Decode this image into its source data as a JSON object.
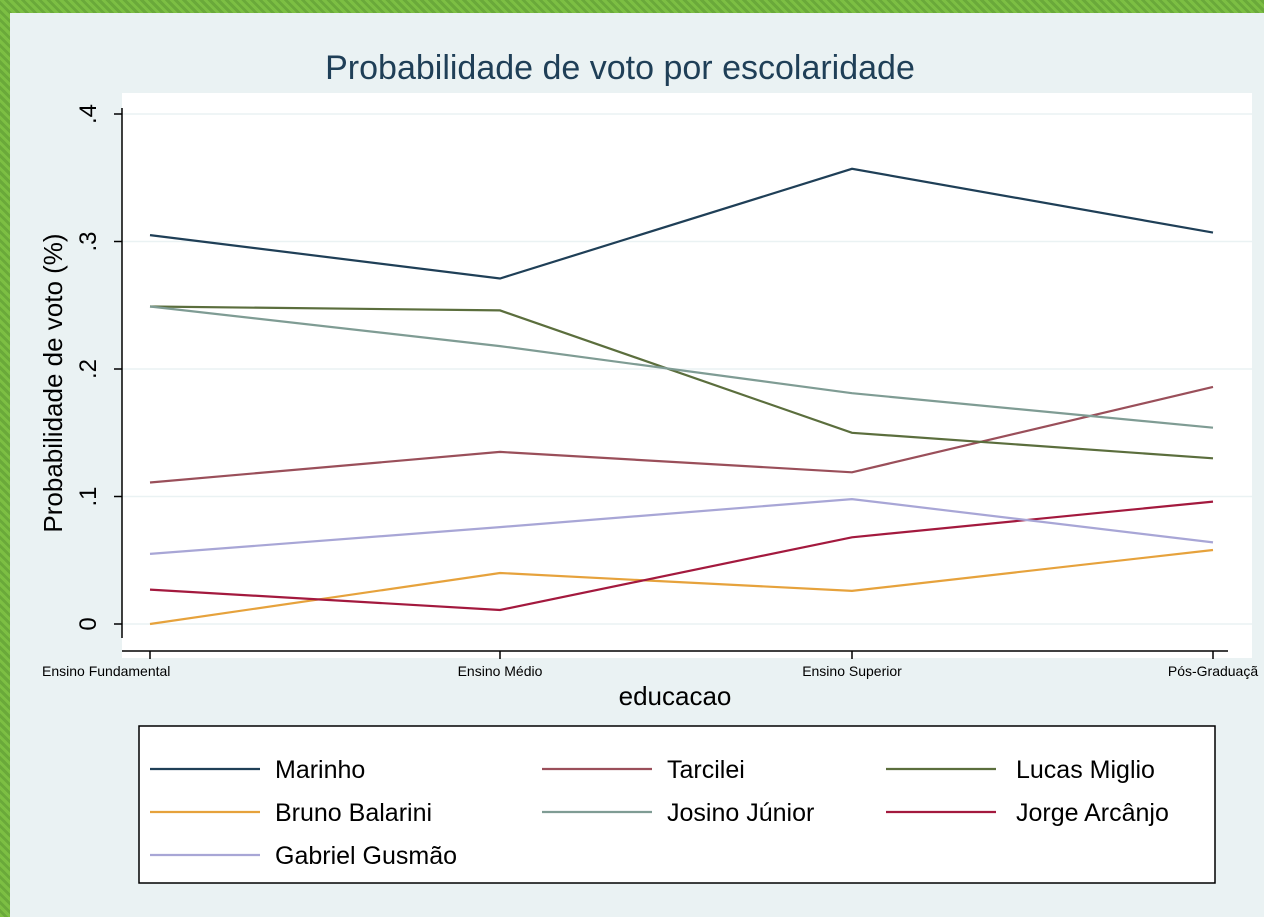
{
  "chart_data": {
    "type": "line",
    "title": "Probabilidade de voto por escolaridade",
    "xlabel": "educacao",
    "ylabel": "Probabilidade de voto (%)",
    "categories": [
      "Ensino Fundamental",
      "Ensino Médio",
      "Ensino Superior",
      "Pós-Graduação"
    ],
    "x_tick_labels": [
      "Ensino Fundamental",
      "Ensino Médio",
      "Ensino Superior",
      "Pós-Graduaçã"
    ],
    "ylim": [
      0,
      0.4
    ],
    "yticks": [
      0,
      0.1,
      0.2,
      0.3,
      0.4
    ],
    "ytick_labels": [
      "0",
      ".1",
      ".2",
      ".3",
      ".4"
    ],
    "grid": true,
    "legend_position": "bottom",
    "series": [
      {
        "name": "Marinho",
        "color": "#1f3f57",
        "values": [
          0.305,
          0.271,
          0.357,
          0.307
        ]
      },
      {
        "name": "Tarcilei",
        "color": "#9a4f5a",
        "values": [
          0.111,
          0.135,
          0.119,
          0.186
        ]
      },
      {
        "name": "Lucas Miglio",
        "color": "#5b6e3d",
        "values": [
          0.249,
          0.246,
          0.15,
          0.13
        ]
      },
      {
        "name": "Bruno Balarini",
        "color": "#e6a23c",
        "values": [
          0.0,
          0.04,
          0.026,
          0.058
        ]
      },
      {
        "name": "Josino Júnior",
        "color": "#7f9c94",
        "values": [
          0.249,
          0.218,
          0.181,
          0.154
        ]
      },
      {
        "name": "Jorge Arcânjo",
        "color": "#a3193e",
        "values": [
          0.027,
          0.011,
          0.068,
          0.096
        ]
      },
      {
        "name": "Gabriel Gusmão",
        "color": "#a8a6d6",
        "values": [
          0.055,
          0.076,
          0.098,
          0.064
        ]
      }
    ]
  }
}
